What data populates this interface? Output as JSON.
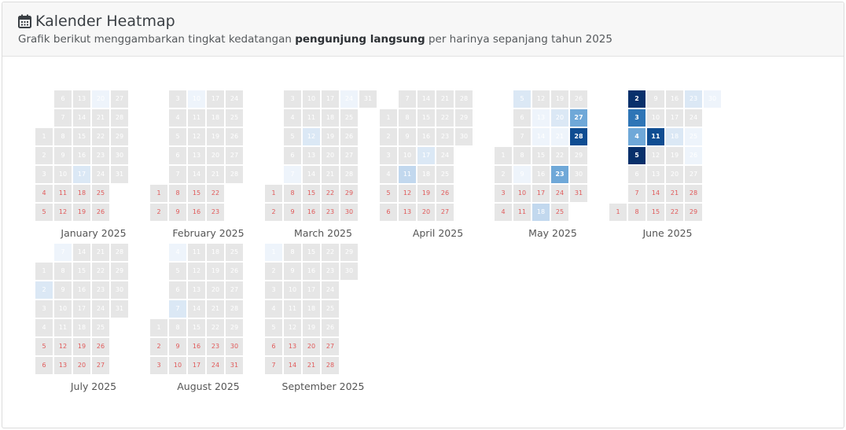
{
  "header": {
    "title": "Kalender Heatmap",
    "subtitle_pre": "Grafik berikut menggambarkan tingkat kedatangan ",
    "subtitle_bold": "pengunjung langsung",
    "subtitle_post": " per harinya sepanjang tahun 2025",
    "icon": "calendar-icon"
  },
  "colors": {
    "empty": "#e6e6e6",
    "weekend_text": "#e05a5a",
    "weekday_text": "#ffffff",
    "scale": [
      "#eef4fb",
      "#dbe8f5",
      "#c2d8ee",
      "#6fa8d8",
      "#2e75b6",
      "#0f4d92",
      "#08306b"
    ]
  },
  "chart_data": {
    "type": "heatmap",
    "year": 2025,
    "title": "Kalender Heatmap",
    "months": [
      {
        "name": "January 2025",
        "index": 0
      },
      {
        "name": "February 2025",
        "index": 1
      },
      {
        "name": "March 2025",
        "index": 2
      },
      {
        "name": "April 2025",
        "index": 3
      },
      {
        "name": "May 2025",
        "index": 4
      },
      {
        "name": "June 2025",
        "index": 5
      },
      {
        "name": "July 2025",
        "index": 6
      },
      {
        "name": "August 2025",
        "index": 7
      },
      {
        "name": "September 2025",
        "index": 8
      }
    ],
    "values": {
      "2025-01-20": 1,
      "2025-01-17": 2,
      "2025-02-10": 1,
      "2025-03-12": 2,
      "2025-03-07": 1,
      "2025-03-24": 1,
      "2025-04-17": 2,
      "2025-04-11": 3,
      "2025-05-05": 2,
      "2025-05-20": 2,
      "2025-05-21": 1,
      "2025-05-27": 4,
      "2025-05-28": 6,
      "2025-05-18": 3,
      "2025-05-23": 4,
      "2025-05-09": 1,
      "2025-05-14": 1,
      "2025-05-13": 1,
      "2025-06-02": 7,
      "2025-06-03": 5,
      "2025-06-04": 4,
      "2025-06-11": 6,
      "2025-06-05": 7,
      "2025-06-23": 2,
      "2025-06-18": 2,
      "2025-06-30": 1,
      "2025-06-26": 1,
      "2025-06-25": 1,
      "2025-07-02": 2,
      "2025-07-07": 1,
      "2025-08-07": 2,
      "2025-08-04": 1,
      "2025-09-01": 1
    }
  }
}
